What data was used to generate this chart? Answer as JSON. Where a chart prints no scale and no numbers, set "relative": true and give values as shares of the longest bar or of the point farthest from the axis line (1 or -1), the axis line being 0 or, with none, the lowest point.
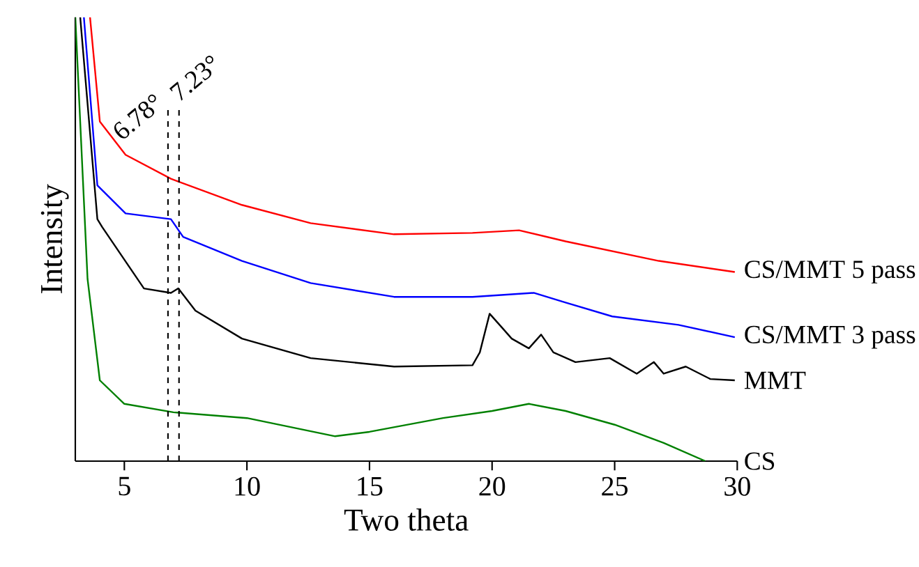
{
  "chart_data": {
    "type": "line",
    "relative": true,
    "xlabel": "Two theta",
    "ylabel": "Intensity",
    "xlim": [
      3,
      30
    ],
    "xticks": [
      5,
      10,
      15,
      20,
      25,
      30
    ],
    "series": [
      {
        "name": "CS/MMT 5 pass",
        "color": "#ff0000",
        "x": [
          3.6,
          4.0,
          5.05,
          6.9,
          9.8,
          12.6,
          16.0,
          19.2,
          21.1,
          23.0,
          24.9,
          26.8,
          29.9
        ],
        "values": [
          1.0,
          0.765,
          0.69,
          0.636,
          0.577,
          0.536,
          0.511,
          0.514,
          0.52,
          0.495,
          0.473,
          0.451,
          0.426
        ]
      },
      {
        "name": "CS/MMT 3 pass",
        "color": "#0000ff",
        "x": [
          3.35,
          3.9,
          5.05,
          6.9,
          7.4,
          9.8,
          12.6,
          16.0,
          19.2,
          21.7,
          23.0,
          24.9,
          27.6,
          29.9
        ],
        "values": [
          1.0,
          0.621,
          0.558,
          0.545,
          0.505,
          0.451,
          0.401,
          0.37,
          0.37,
          0.379,
          0.357,
          0.326,
          0.307,
          0.279
        ]
      },
      {
        "name": "MMT",
        "color": "#000000",
        "x": [
          3.2,
          3.9,
          4.1,
          5.8,
          6.9,
          7.2,
          7.9,
          9.8,
          12.6,
          16.0,
          19.2,
          19.5,
          19.9,
          20.4,
          20.8,
          21.5,
          22.0,
          22.5,
          23.4,
          24.8,
          25.9,
          26.6,
          27.0,
          27.9,
          28.9,
          29.9
        ],
        "values": [
          1.0,
          0.545,
          0.527,
          0.389,
          0.379,
          0.389,
          0.339,
          0.276,
          0.232,
          0.213,
          0.216,
          0.245,
          0.332,
          0.301,
          0.276,
          0.254,
          0.285,
          0.245,
          0.223,
          0.232,
          0.197,
          0.223,
          0.197,
          0.213,
          0.185,
          0.182
        ]
      },
      {
        "name": "CS",
        "color": "#008000",
        "x": [
          3.0,
          3.5,
          4.0,
          5.0,
          7.0,
          10.0,
          13.6,
          15.0,
          18.0,
          20.0,
          21.5,
          23.0,
          25.0,
          27.0,
          28.7
        ],
        "values": [
          1.0,
          0.41,
          0.182,
          0.129,
          0.11,
          0.097,
          0.056,
          0.066,
          0.097,
          0.113,
          0.129,
          0.113,
          0.082,
          0.041,
          0.0
        ]
      }
    ],
    "ref_lines": [
      {
        "axis": "x",
        "value": 6.78,
        "label": "6.78°",
        "line_style": "dashed",
        "color": "#000000"
      },
      {
        "axis": "x",
        "value": 7.23,
        "label": "7.23°",
        "line_style": "dashed",
        "color": "#000000"
      }
    ]
  }
}
